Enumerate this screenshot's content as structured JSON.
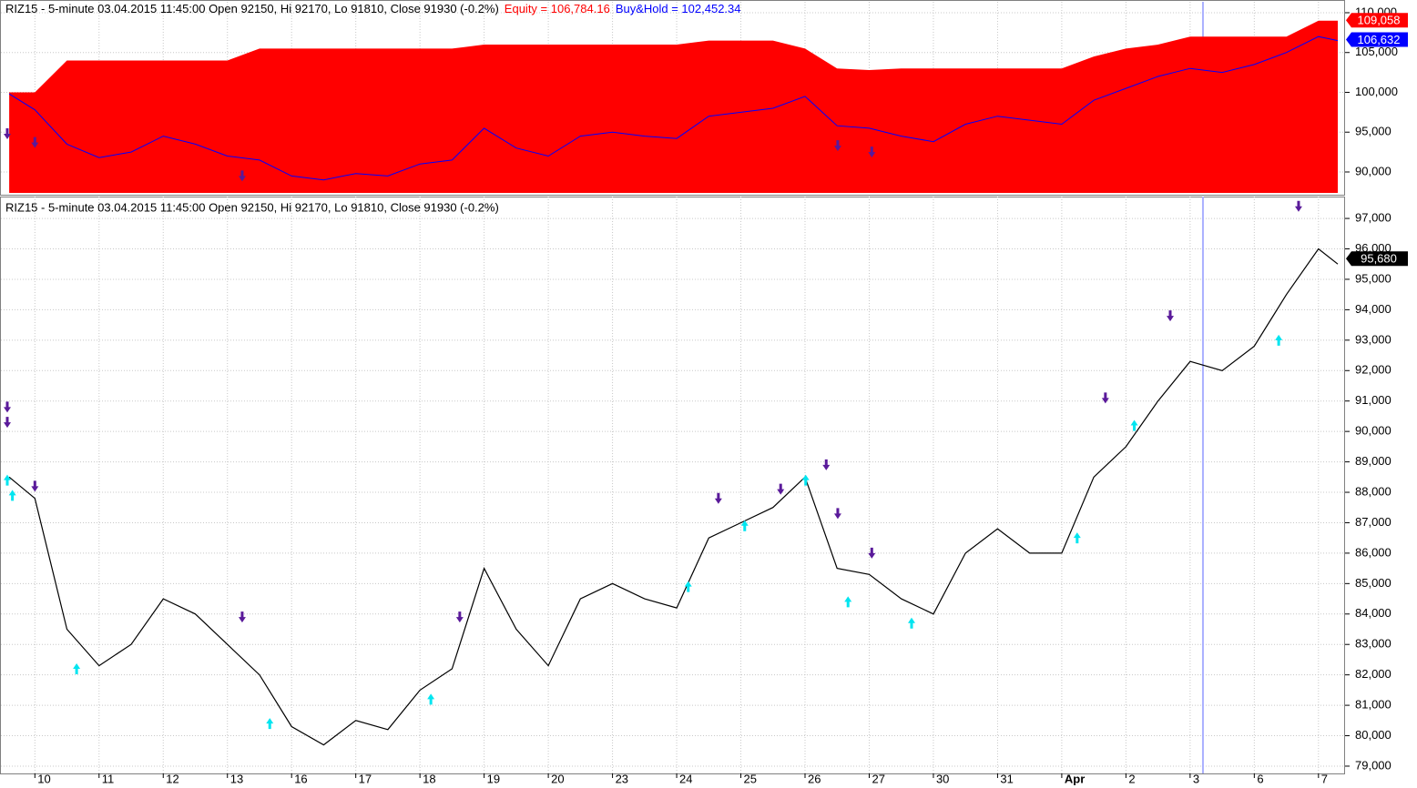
{
  "chart_data": [
    {
      "type": "area",
      "title": "RIZ15 - 5-minute 03.04.2015 11:45:00 Open 92150, Hi 92170, Lo 91810, Close 91930 (-0.2%)",
      "x": [
        -0.4,
        0,
        0.5,
        1,
        1.5,
        2,
        2.5,
        3,
        3.5,
        4,
        4.5,
        5,
        5.5,
        6,
        6.5,
        7,
        7.5,
        8,
        8.5,
        9,
        9.5,
        10,
        10.5,
        11,
        11.5,
        12,
        12.5,
        13,
        13.5,
        14,
        14.5,
        15,
        15.5,
        16,
        16.5,
        17,
        17.5,
        18,
        18.5,
        19,
        19.5,
        20,
        20.3
      ],
      "series": [
        {
          "name": "Equity = 106,784.16",
          "color": "#ff0000",
          "type": "area",
          "values": [
            100000,
            100000,
            104000,
            104000,
            104000,
            104000,
            104000,
            104000,
            105500,
            105500,
            105500,
            105500,
            105500,
            105500,
            105500,
            106000,
            106000,
            106000,
            106000,
            106000,
            106000,
            106000,
            106500,
            106500,
            106500,
            105500,
            103000,
            102800,
            103000,
            103000,
            103000,
            103000,
            103000,
            103000,
            104500,
            105500,
            106000,
            107000,
            107000,
            107000,
            107000,
            109000,
            109000
          ],
          "last": {
            "value": 109058,
            "label": "109,058"
          }
        },
        {
          "name": "Buy&Hold = 102,452.34",
          "color": "#0000ff",
          "type": "line",
          "values": [
            99800,
            97800,
            93500,
            91800,
            92500,
            94500,
            93500,
            92000,
            91500,
            89500,
            89000,
            89800,
            89500,
            91000,
            91500,
            95500,
            93000,
            92000,
            94500,
            95000,
            94500,
            94200,
            97000,
            97500,
            98000,
            99500,
            95800,
            95500,
            94500,
            93800,
            96000,
            97000,
            96500,
            96000,
            99000,
            100500,
            102000,
            103000,
            102500,
            103500,
            105000,
            107000,
            106500
          ],
          "last": {
            "value": 106632,
            "label": "106,632"
          }
        },
        {
          "type": "scatter",
          "marker": "down",
          "color": "#5a1a9a",
          "x": [
            -0.43,
            0,
            3.23,
            12.51,
            13.04
          ],
          "values": [
            94800,
            93700,
            89500,
            93300,
            92500
          ]
        }
      ],
      "xlim": [
        -0.43,
        20.4
      ],
      "ylim": [
        87370,
        111140
      ],
      "yticks": [
        {
          "value": 90000,
          "label": "90,000"
        },
        {
          "value": 95000,
          "label": "95,000"
        },
        {
          "value": 100000,
          "label": "100,000"
        },
        {
          "value": 105000,
          "label": "105,000"
        },
        {
          "value": 110000,
          "label": "110,000"
        }
      ],
      "grid": true
    },
    {
      "type": "line",
      "title": "RIZ15 - 5-minute 03.04.2015 11:45:00 Open 92150, Hi 92170, Lo 91810, Close 91930 (-0.2%)",
      "x": [
        -0.4,
        0,
        0.5,
        1,
        1.5,
        2,
        2.5,
        3,
        3.5,
        4,
        4.5,
        5,
        5.5,
        6,
        6.5,
        7,
        7.5,
        8,
        8.5,
        9,
        9.5,
        10,
        10.5,
        11,
        11.5,
        12,
        12.5,
        13,
        13.5,
        14,
        14.5,
        15,
        15.5,
        16,
        16.5,
        17,
        17.5,
        18,
        18.5,
        19,
        19.5,
        20,
        20.3
      ],
      "series": [
        {
          "color": "#000000",
          "type": "line",
          "values": [
            88500,
            87800,
            83500,
            82300,
            83000,
            84500,
            84000,
            83000,
            82000,
            80300,
            79700,
            80500,
            80200,
            81500,
            82200,
            85500,
            83500,
            82300,
            84500,
            85000,
            84500,
            84200,
            86500,
            87000,
            87500,
            88500,
            85500,
            85300,
            84500,
            84000,
            86000,
            86800,
            86000,
            86000,
            88500,
            89500,
            91000,
            92300,
            92000,
            92800,
            94500,
            96000,
            95500
          ],
          "last": {
            "value": 95680,
            "label": "95,680"
          }
        },
        {
          "type": "scatter",
          "marker": "down",
          "color": "#5a1a9a",
          "x": [
            -0.43,
            -0.43,
            0,
            3.23,
            6.62,
            10.65,
            11.62,
            12.33,
            12.51,
            13.04,
            16.68,
            17.69,
            19.69
          ],
          "values": [
            90800,
            90300,
            88200,
            83900,
            83900,
            87800,
            88100,
            88900,
            87300,
            86000,
            91100,
            93800,
            97400
          ]
        },
        {
          "type": "scatter",
          "marker": "up",
          "color": "#00e5f0",
          "x": [
            -0.43,
            -0.35,
            0.65,
            3.66,
            6.17,
            10.18,
            11.06,
            12.01,
            12.67,
            13.66,
            16.24,
            17.13,
            19.38
          ],
          "values": [
            88400,
            87900,
            82200,
            80400,
            81200,
            84900,
            86900,
            88400,
            84400,
            83700,
            86500,
            90200,
            93000
          ]
        }
      ],
      "xlim": [
        -0.43,
        20.4
      ],
      "ylim": [
        78760,
        97660
      ],
      "xticks": [
        {
          "value": 0,
          "label": "10"
        },
        {
          "value": 1,
          "label": "11"
        },
        {
          "value": 2,
          "label": "12"
        },
        {
          "value": 3,
          "label": "13"
        },
        {
          "value": 4,
          "label": "16"
        },
        {
          "value": 5,
          "label": "17"
        },
        {
          "value": 6,
          "label": "18"
        },
        {
          "value": 7,
          "label": "19"
        },
        {
          "value": 8,
          "label": "20"
        },
        {
          "value": 9,
          "label": "23"
        },
        {
          "value": 10,
          "label": "24"
        },
        {
          "value": 11,
          "label": "25"
        },
        {
          "value": 12,
          "label": "26"
        },
        {
          "value": 13,
          "label": "27"
        },
        {
          "value": 14,
          "label": "30"
        },
        {
          "value": 15,
          "label": "31"
        },
        {
          "value": 16,
          "label": "Apr"
        },
        {
          "value": 17,
          "label": "2"
        },
        {
          "value": 18,
          "label": "3"
        },
        {
          "value": 19,
          "label": "6"
        },
        {
          "value": 20,
          "label": "7"
        }
      ],
      "yticks": [
        {
          "value": 79000,
          "label": "79,000"
        },
        {
          "value": 80000,
          "label": "80,000"
        },
        {
          "value": 81000,
          "label": "81,000"
        },
        {
          "value": 82000,
          "label": "82,000"
        },
        {
          "value": 83000,
          "label": "83,000"
        },
        {
          "value": 84000,
          "label": "84,000"
        },
        {
          "value": 85000,
          "label": "85,000"
        },
        {
          "value": 86000,
          "label": "86,000"
        },
        {
          "value": 87000,
          "label": "87,000"
        },
        {
          "value": 88000,
          "label": "88,000"
        },
        {
          "value": 89000,
          "label": "89,000"
        },
        {
          "value": 90000,
          "label": "90,000"
        },
        {
          "value": 91000,
          "label": "91,000"
        },
        {
          "value": 92000,
          "label": "92,000"
        },
        {
          "value": 93000,
          "label": "93,000"
        },
        {
          "value": 94000,
          "label": "94,000"
        },
        {
          "value": 95000,
          "label": "95,000"
        },
        {
          "value": 96000,
          "label": "96,000"
        },
        {
          "value": 97000,
          "label": "97,000"
        }
      ],
      "grid": true,
      "cursor": 18.2
    }
  ]
}
